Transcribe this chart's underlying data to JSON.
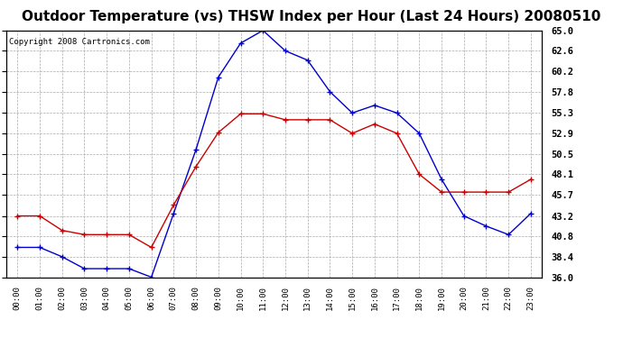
{
  "title": "Outdoor Temperature (vs) THSW Index per Hour (Last 24 Hours) 20080510",
  "copyright": "Copyright 2008 Cartronics.com",
  "hours": [
    "00:00",
    "01:00",
    "02:00",
    "03:00",
    "04:00",
    "05:00",
    "06:00",
    "07:00",
    "08:00",
    "09:00",
    "10:00",
    "11:00",
    "12:00",
    "13:00",
    "14:00",
    "15:00",
    "16:00",
    "17:00",
    "18:00",
    "19:00",
    "20:00",
    "21:00",
    "22:00",
    "23:00"
  ],
  "temp": [
    43.2,
    43.2,
    41.5,
    41.0,
    41.0,
    41.0,
    39.5,
    44.5,
    49.0,
    53.0,
    55.2,
    55.2,
    54.5,
    54.5,
    54.5,
    52.9,
    54.0,
    52.9,
    48.1,
    46.0,
    46.0,
    46.0,
    46.0,
    47.5
  ],
  "thsw": [
    39.5,
    39.5,
    38.4,
    37.0,
    37.0,
    37.0,
    36.0,
    43.5,
    51.0,
    59.5,
    63.5,
    65.0,
    62.6,
    61.5,
    57.8,
    55.3,
    56.2,
    55.3,
    52.9,
    47.5,
    43.2,
    42.0,
    41.0,
    43.5
  ],
  "ylim": [
    36.0,
    65.0
  ],
  "yticks": [
    36.0,
    38.4,
    40.8,
    43.2,
    45.7,
    48.1,
    50.5,
    52.9,
    55.3,
    57.8,
    60.2,
    62.6,
    65.0
  ],
  "temp_color": "#cc0000",
  "thsw_color": "#0000cc",
  "grid_color": "#aaaaaa",
  "bg_color": "#ffffff",
  "title_fontsize": 11,
  "copyright_fontsize": 6.5
}
